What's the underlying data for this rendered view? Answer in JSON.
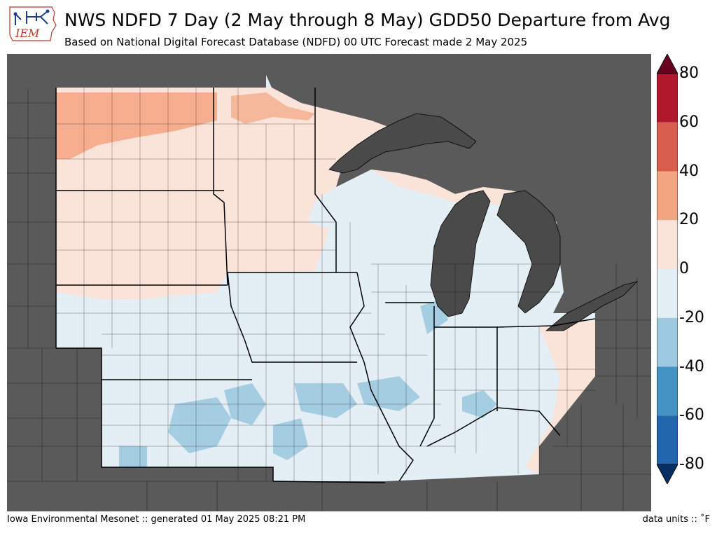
{
  "header": {
    "title": "NWS NDFD 7 Day (2 May through 8 May) GDD50 Departure from Avg",
    "subtitle": "Based on National Digital Forecast Database (NDFD) 00 UTC Forecast made 2 May 2025",
    "logo_text": "IEM"
  },
  "colorbar": {
    "ticks": [
      "80",
      "60",
      "40",
      "20",
      "0",
      "-20",
      "-40",
      "-60",
      "-80"
    ],
    "colors": {
      "extend_high": "#67001f",
      "60_80": "#b2182b",
      "40_60": "#d6604d",
      "20_40": "#f4a582",
      "0_20": "#fae3d8",
      "neg20_0": "#e4eef5",
      "neg40_neg20": "#9ecae1",
      "neg60_neg40": "#4393c3",
      "neg80_neg60": "#2166ac",
      "extend_low": "#053061"
    }
  },
  "map": {
    "colors": {
      "outside": "#5a5a5a",
      "lakes": "#4a4a4a",
      "warm_light": "#fae3d8",
      "warm_mid": "#f4a582",
      "cool_light": "#e4eef5",
      "cool_mid": "#9ecae1"
    }
  },
  "footer": {
    "left": "Iowa Environmental Mesonet :: generated 01 May 2025 08:21 PM",
    "right": "data units :: ˚F"
  }
}
